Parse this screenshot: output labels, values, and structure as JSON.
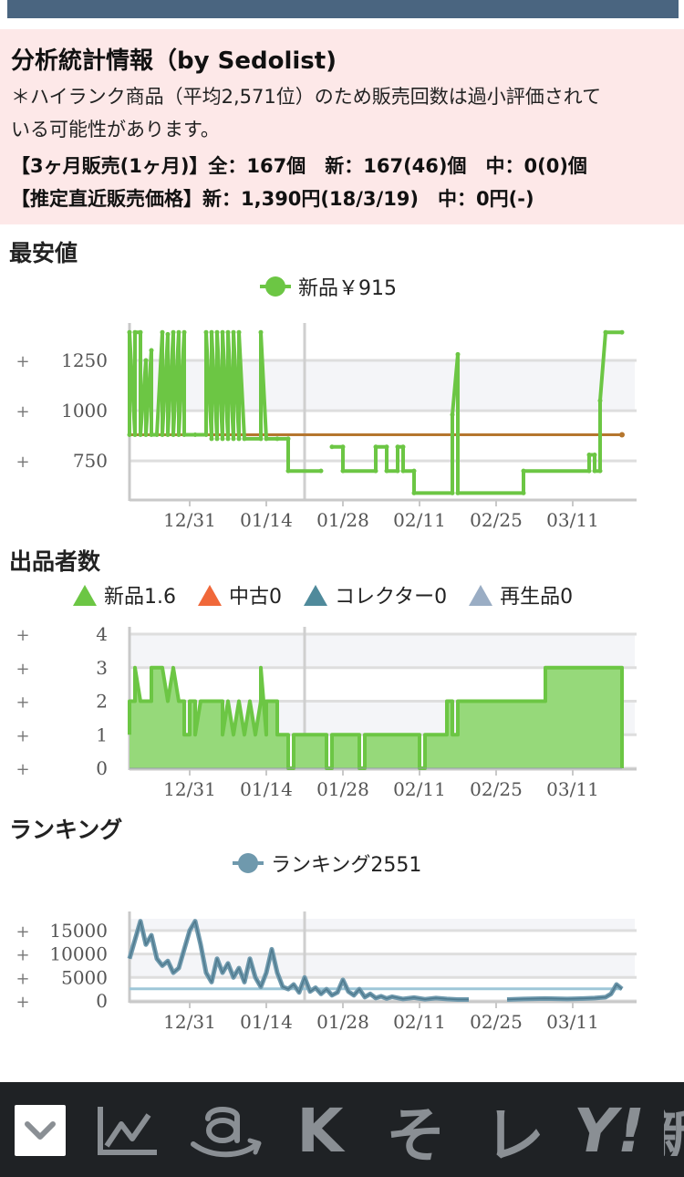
{
  "info": {
    "heading": "分析統計情報（by Sedolist)",
    "note_line1": "＊ハイランク商品（平均2,571位）のため販売回数は過小評価されて",
    "note_line2": "いる可能性があります。",
    "sales_line": "【3ヶ月販売(1ヶ月)】全：167個　新：167(46)個　中：0(0)個",
    "price_line": "【推定直近販売価格】新：1,390円(18/3/19)　中：0円(-)"
  },
  "sections": {
    "lowest": "最安値",
    "sellers": "出品者数",
    "ranking": "ランキング"
  },
  "colors": {
    "new": "#6cc644",
    "new_fill": "#96d97a",
    "used": "#f0683a",
    "collector": "#4f8a9b",
    "refurb": "#9aadc4",
    "rank": "#6f99ad",
    "avg_price": "#b5762e",
    "avg_rank": "#9ec7d8",
    "header_bar": "#4a6580",
    "info_bg": "#fde8e8",
    "bottom_bar": "#1f2225"
  },
  "legends": {
    "lowest": [
      {
        "label": "新品￥915",
        "marker": "circle-line",
        "color": "#6cc644"
      }
    ],
    "sellers": [
      {
        "label": "新品1.6",
        "marker": "triangle",
        "color": "#6cc644"
      },
      {
        "label": "中古0",
        "marker": "triangle",
        "color": "#f0683a"
      },
      {
        "label": "コレクター0",
        "marker": "triangle",
        "color": "#4f8a9b"
      },
      {
        "label": "再生品0",
        "marker": "triangle",
        "color": "#9aadc4"
      }
    ],
    "ranking": [
      {
        "label": "ランキング2551",
        "marker": "circle-line",
        "color": "#6f99ad"
      }
    ]
  },
  "x_dates": [
    "12/31",
    "01/14",
    "01/28",
    "02/11",
    "02/25",
    "03/11"
  ],
  "plus_sign": "+",
  "chart_data": [
    {
      "type": "line",
      "id": "lowest",
      "ylim": [
        560,
        1400
      ],
      "y_ticks": [
        750,
        1000,
        1250
      ],
      "x_ticks": [
        "12/31",
        "01/14",
        "01/28",
        "02/11",
        "02/25",
        "03/11"
      ],
      "reference": 880,
      "series": [
        {
          "name": "新品￥915",
          "points": [
            [
              "12/20",
              880
            ],
            [
              "12/20",
              1390
            ],
            [
              "12/21",
              880
            ],
            [
              "12/21",
              1390
            ],
            [
              "12/22",
              1390
            ],
            [
              "12/22",
              880
            ],
            [
              "12/23",
              1250
            ],
            [
              "12/23",
              880
            ],
            [
              "12/24",
              1300
            ],
            [
              "12/24",
              880
            ],
            [
              "12/25",
              880
            ],
            [
              "12/26",
              1390
            ],
            [
              "12/26",
              880
            ],
            [
              "12/27",
              1380
            ],
            [
              "12/27",
              880
            ],
            [
              "12/28",
              1390
            ],
            [
              "12/28",
              880
            ],
            [
              "12/29",
              1390
            ],
            [
              "12/29",
              880
            ],
            [
              "12/30",
              1390
            ],
            [
              "12/30",
              880
            ],
            [
              "01/01",
              880
            ],
            [
              "01/03",
              880
            ],
            [
              "01/03",
              1390
            ],
            [
              "01/04",
              860
            ],
            [
              "01/04",
              1390
            ],
            [
              "01/05",
              860
            ],
            [
              "01/05",
              1390
            ],
            [
              "01/06",
              860
            ],
            [
              "01/06",
              1390
            ],
            [
              "01/07",
              860
            ],
            [
              "01/07",
              1390
            ],
            [
              "01/08",
              860
            ],
            [
              "01/08",
              1390
            ],
            [
              "01/09",
              860
            ],
            [
              "01/09",
              1390
            ],
            [
              "01/10",
              860
            ],
            [
              "01/13",
              860
            ],
            [
              "01/13",
              1390
            ],
            [
              "01/14",
              860
            ],
            [
              "01/16",
              860
            ],
            [
              "01/18",
              860
            ],
            [
              "01/18",
              700
            ],
            [
              "01/24",
              700
            ],
            [
              "01/24",
              null
            ],
            [
              "01/26",
              820
            ],
            [
              "01/28",
              820
            ],
            [
              "01/28",
              700
            ],
            [
              "02/03",
              700
            ],
            [
              "02/03",
              820
            ],
            [
              "02/05",
              820
            ],
            [
              "02/05",
              700
            ],
            [
              "02/07",
              700
            ],
            [
              "02/07",
              820
            ],
            [
              "02/08",
              820
            ],
            [
              "02/08",
              700
            ],
            [
              "02/10",
              700
            ],
            [
              "02/10",
              590
            ],
            [
              "02/17",
              590
            ],
            [
              "02/17",
              980
            ],
            [
              "02/18",
              1280
            ],
            [
              "02/18",
              590
            ],
            [
              "03/02",
              590
            ],
            [
              "03/02",
              700
            ],
            [
              "03/14",
              700
            ],
            [
              "03/14",
              780
            ],
            [
              "03/15",
              780
            ],
            [
              "03/15",
              700
            ],
            [
              "03/16",
              700
            ],
            [
              "03/16",
              1050
            ],
            [
              "03/17",
              1390
            ],
            [
              "03/20",
              1390
            ]
          ]
        }
      ]
    },
    {
      "type": "area",
      "id": "sellers",
      "ylim": [
        0,
        4
      ],
      "y_ticks": [
        0,
        1,
        2,
        3,
        4
      ],
      "x_ticks": [
        "12/31",
        "01/14",
        "01/28",
        "02/11",
        "02/25",
        "03/11"
      ],
      "series": [
        {
          "name": "新品1.6",
          "points": [
            [
              "12/20",
              1
            ],
            [
              "12/20",
              2
            ],
            [
              "12/21",
              2
            ],
            [
              "12/21",
              3
            ],
            [
              "12/22",
              2
            ],
            [
              "12/23",
              2
            ],
            [
              "12/24",
              2
            ],
            [
              "12/24",
              3
            ],
            [
              "12/26",
              3
            ],
            [
              "12/27",
              2
            ],
            [
              "12/28",
              3
            ],
            [
              "12/29",
              2
            ],
            [
              "12/30",
              2
            ],
            [
              "12/30",
              1
            ],
            [
              "12/31",
              1
            ],
            [
              "12/31",
              2
            ],
            [
              "01/01",
              2
            ],
            [
              "01/01",
              1
            ],
            [
              "01/02",
              2
            ],
            [
              "01/06",
              2
            ],
            [
              "01/06",
              1
            ],
            [
              "01/07",
              2
            ],
            [
              "01/08",
              1
            ],
            [
              "01/09",
              2
            ],
            [
              "01/10",
              1
            ],
            [
              "01/11",
              2
            ],
            [
              "01/12",
              1
            ],
            [
              "01/13",
              2
            ],
            [
              "01/13",
              3
            ],
            [
              "01/14",
              1
            ],
            [
              "01/14",
              2
            ],
            [
              "01/16",
              2
            ],
            [
              "01/16",
              1
            ],
            [
              "01/18",
              1
            ],
            [
              "01/18",
              0
            ],
            [
              "01/19",
              0
            ],
            [
              "01/19",
              1
            ],
            [
              "01/25",
              1
            ],
            [
              "01/25",
              0
            ],
            [
              "01/26",
              0
            ],
            [
              "01/26",
              1
            ],
            [
              "01/31",
              1
            ],
            [
              "01/31",
              0
            ],
            [
              "02/01",
              0
            ],
            [
              "02/01",
              1
            ],
            [
              "02/11",
              1
            ],
            [
              "02/11",
              0
            ],
            [
              "02/12",
              0
            ],
            [
              "02/12",
              1
            ],
            [
              "02/16",
              1
            ],
            [
              "02/16",
              2
            ],
            [
              "02/17",
              2
            ],
            [
              "02/17",
              1
            ],
            [
              "02/18",
              1
            ],
            [
              "02/18",
              2
            ],
            [
              "03/06",
              2
            ],
            [
              "03/06",
              3
            ],
            [
              "03/20",
              3
            ],
            [
              "03/20",
              0
            ]
          ]
        },
        {
          "name": "中古0",
          "points": [
            [
              "12/20",
              0
            ],
            [
              "03/20",
              0
            ]
          ]
        },
        {
          "name": "コレクター0",
          "points": [
            [
              "12/20",
              0
            ],
            [
              "03/20",
              0
            ]
          ]
        },
        {
          "name": "再生品0",
          "points": [
            [
              "12/20",
              0
            ],
            [
              "03/20",
              0
            ]
          ]
        }
      ]
    },
    {
      "type": "line",
      "id": "ranking",
      "ylim": [
        0,
        17500
      ],
      "y_ticks": [
        0,
        5000,
        10000,
        15000
      ],
      "x_ticks": [
        "12/31",
        "01/14",
        "01/28",
        "02/11",
        "02/25",
        "03/11"
      ],
      "reference": 2571,
      "series": [
        {
          "name": "ランキング2551",
          "points": [
            [
              "12/20",
              9000
            ],
            [
              "12/21",
              13000
            ],
            [
              "12/22",
              17000
            ],
            [
              "12/23",
              12000
            ],
            [
              "12/24",
              14000
            ],
            [
              "12/25",
              9000
            ],
            [
              "12/26",
              7500
            ],
            [
              "12/27",
              8500
            ],
            [
              "12/28",
              6000
            ],
            [
              "12/29",
              7000
            ],
            [
              "12/30",
              11000
            ],
            [
              "12/31",
              15000
            ],
            [
              "01/01",
              17000
            ],
            [
              "01/02",
              12000
            ],
            [
              "01/03",
              6000
            ],
            [
              "01/04",
              4000
            ],
            [
              "01/05",
              9000
            ],
            [
              "01/06",
              6000
            ],
            [
              "01/07",
              8000
            ],
            [
              "01/08",
              5000
            ],
            [
              "01/09",
              7000
            ],
            [
              "01/10",
              4000
            ],
            [
              "01/11",
              9000
            ],
            [
              "01/12",
              5000
            ],
            [
              "01/13",
              3000
            ],
            [
              "01/14",
              6000
            ],
            [
              "01/15",
              11000
            ],
            [
              "01/16",
              6000
            ],
            [
              "01/17",
              3000
            ],
            [
              "01/18",
              2500
            ],
            [
              "01/19",
              3500
            ],
            [
              "01/20",
              1800
            ],
            [
              "01/21",
              5000
            ],
            [
              "01/22",
              2000
            ],
            [
              "01/23",
              2800
            ],
            [
              "01/24",
              1500
            ],
            [
              "01/25",
              2500
            ],
            [
              "01/26",
              1200
            ],
            [
              "01/27",
              1800
            ],
            [
              "01/28",
              4500
            ],
            [
              "01/29",
              2000
            ],
            [
              "01/30",
              1200
            ],
            [
              "01/31",
              2500
            ],
            [
              "02/01",
              800
            ],
            [
              "02/02",
              1500
            ],
            [
              "02/03",
              600
            ],
            [
              "02/04",
              1000
            ],
            [
              "02/05",
              500
            ],
            [
              "02/06",
              900
            ],
            [
              "02/08",
              400
            ],
            [
              "02/10",
              700
            ],
            [
              "02/12",
              350
            ],
            [
              "02/14",
              600
            ],
            [
              "02/16",
              400
            ],
            [
              "02/18",
              300
            ],
            [
              "02/20",
              300
            ],
            [
              "02/22",
              null
            ],
            [
              "02/27",
              300
            ],
            [
              "03/02",
              400
            ],
            [
              "03/06",
              500
            ],
            [
              "03/10",
              400
            ],
            [
              "03/13",
              500
            ],
            [
              "03/15",
              600
            ],
            [
              "03/17",
              800
            ],
            [
              "03/18",
              1500
            ],
            [
              "03/19",
              3500
            ],
            [
              "03/20",
              2551
            ]
          ]
        }
      ]
    }
  ],
  "toolbar": {
    "chevron": "⌄",
    "k_label": "K",
    "so_label": "そ",
    "re_label": "レ",
    "y_label": "Y!"
  }
}
